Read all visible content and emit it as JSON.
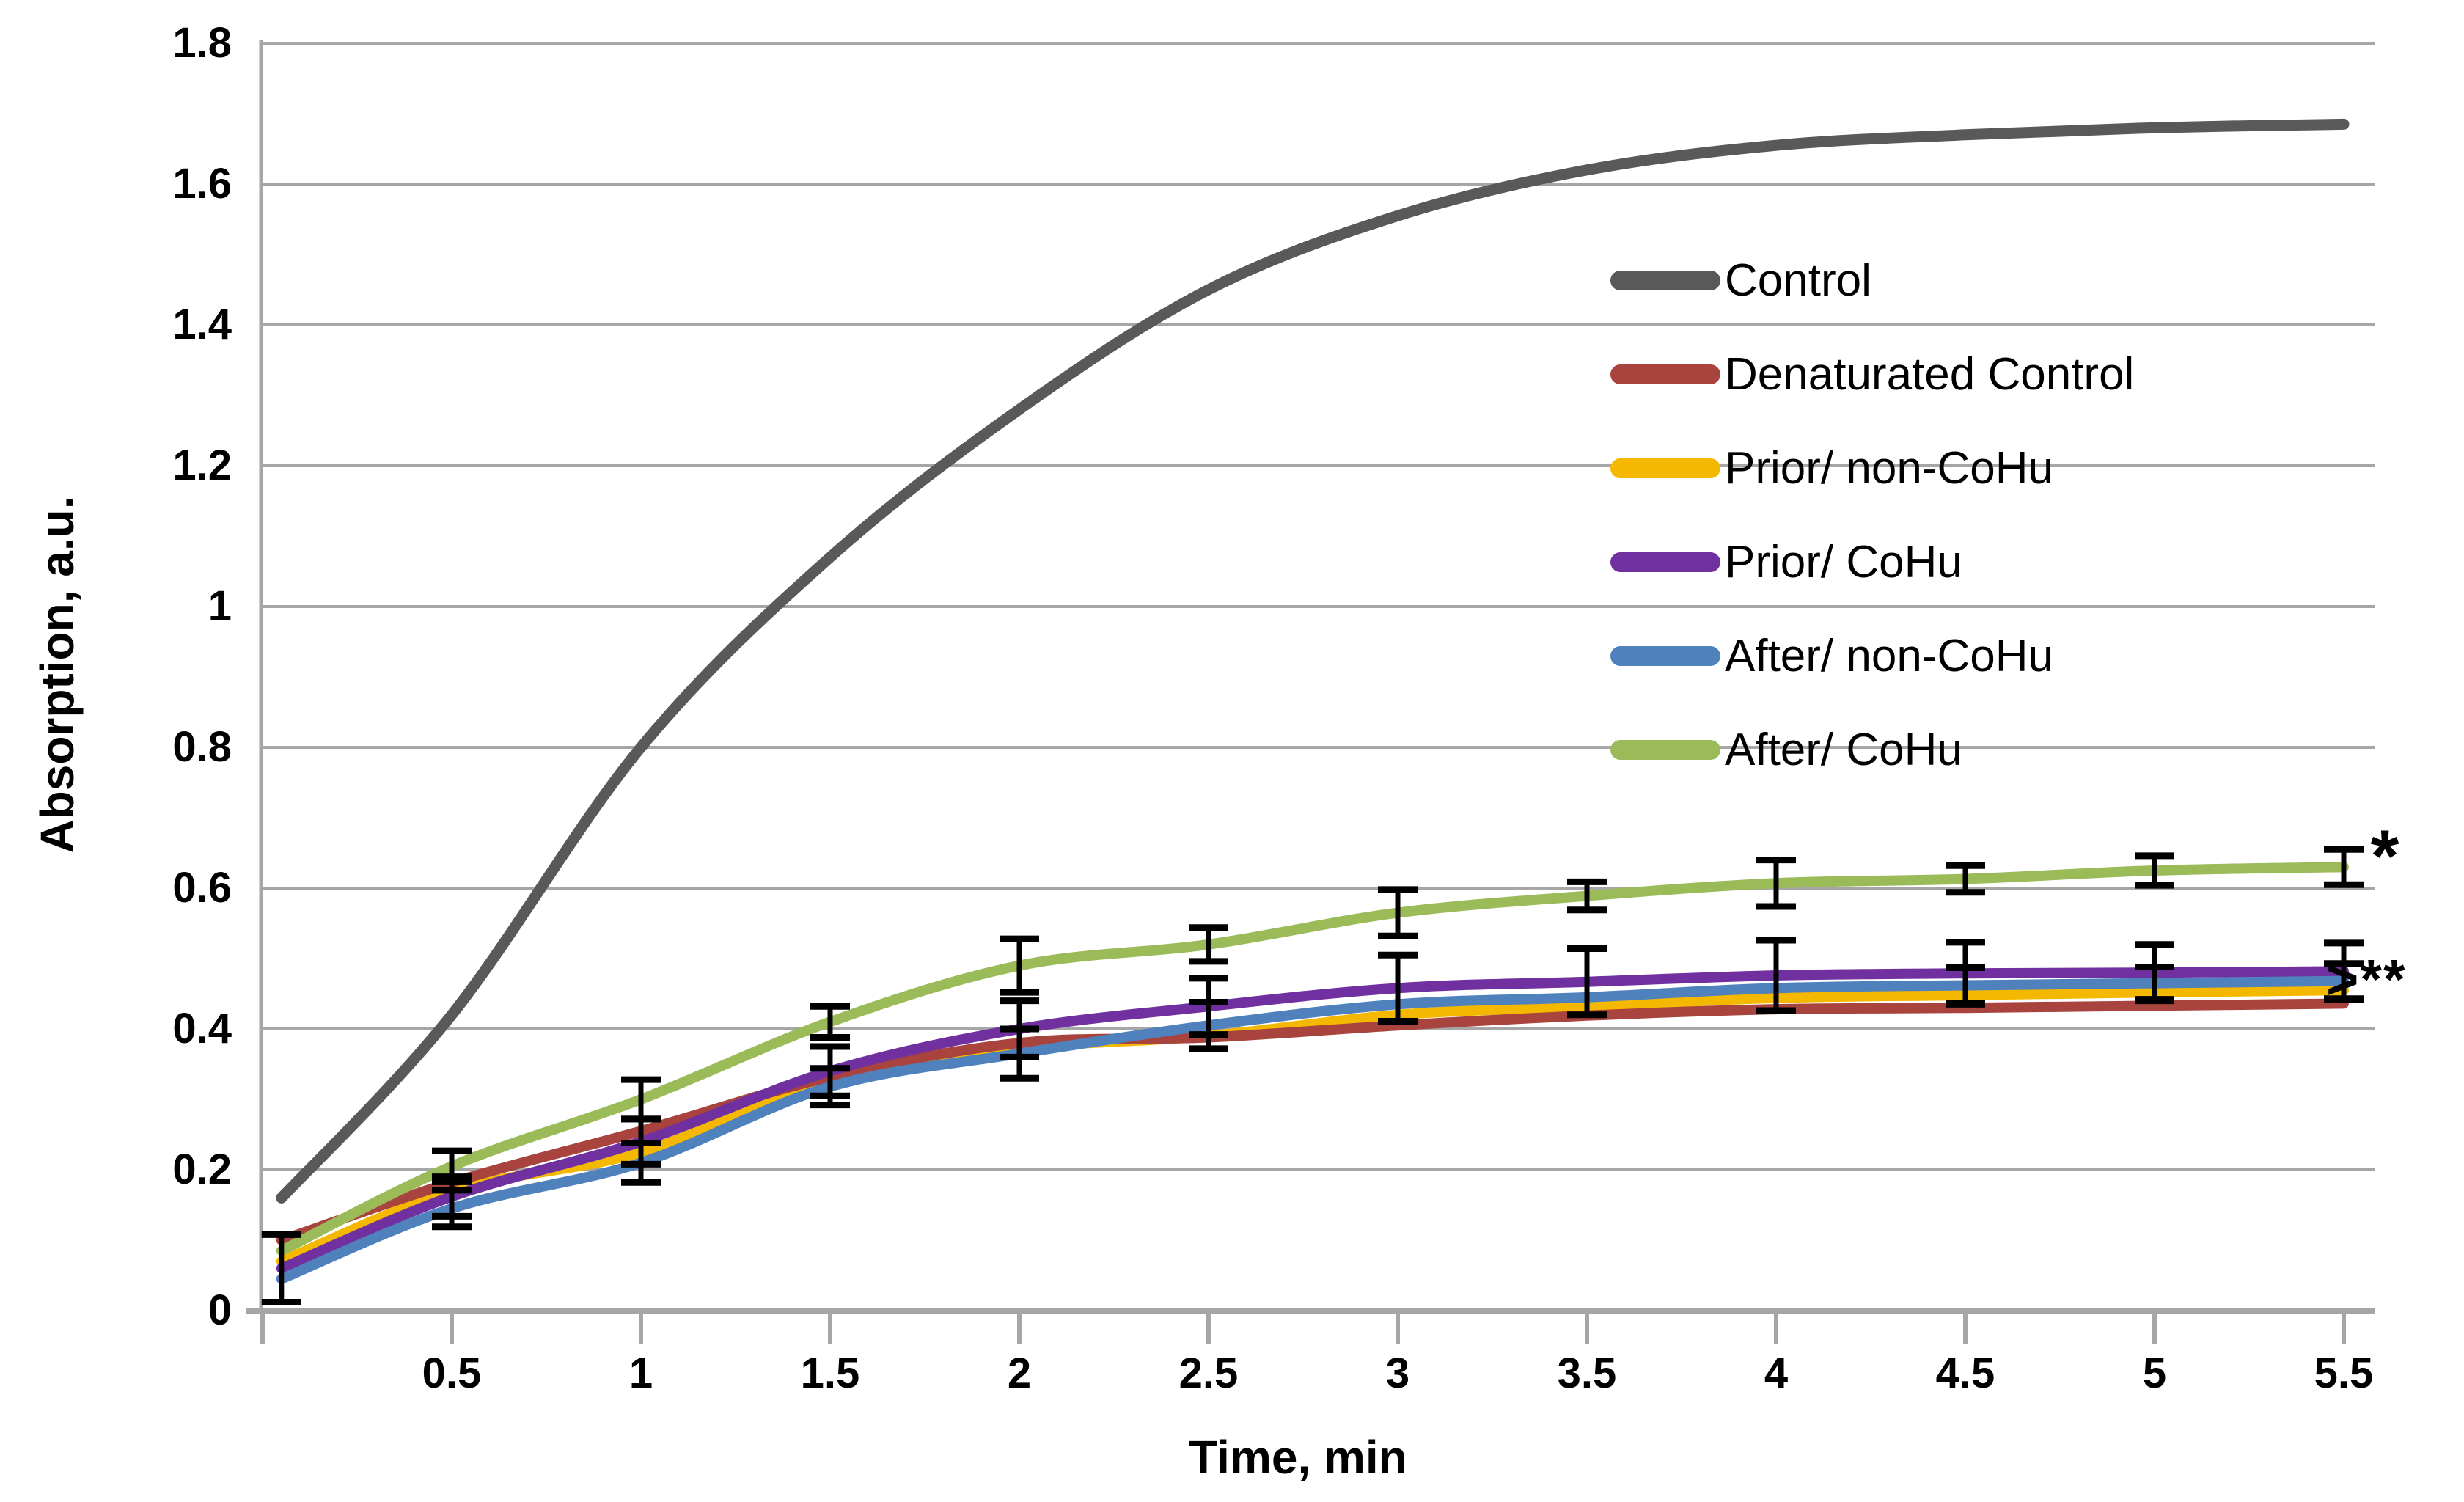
{
  "chart_data": {
    "type": "line",
    "title": "",
    "xlabel": "Time, min",
    "ylabel": "Absorption, a.u.",
    "xlim": [
      0,
      5.58
    ],
    "ylim": [
      0,
      1.8
    ],
    "grid": "horizontal",
    "legend_position": "inside-upper-right",
    "x": [
      0.05,
      0.5,
      1,
      1.5,
      2,
      2.5,
      3,
      3.5,
      4,
      4.5,
      5,
      5.5
    ],
    "series": [
      {
        "name": "Control",
        "color": "#595959",
        "values": [
          0.16,
          0.42,
          0.8,
          1.07,
          1.28,
          1.45,
          1.555,
          1.62,
          1.655,
          1.67,
          1.68,
          1.685
        ],
        "errors": null
      },
      {
        "name": "Denaturated Control",
        "color": "#A8433D",
        "values": [
          0.1,
          0.182,
          0.255,
          0.332,
          0.38,
          0.388,
          0.405,
          0.419,
          0.428,
          0.43,
          0.433,
          0.436
        ],
        "errors": null
      },
      {
        "name": "Prior/ non-CoHu",
        "color": "#F5B800",
        "values": [
          0.07,
          0.17,
          0.225,
          0.328,
          0.372,
          0.39,
          0.42,
          0.432,
          0.444,
          0.448,
          0.452,
          0.455
        ],
        "errors": null
      },
      {
        "name": "Prior/ CoHu",
        "color": "#7030A0",
        "values": [
          0.06,
          0.162,
          0.24,
          0.34,
          0.4,
          0.432,
          0.458,
          0.467,
          0.476,
          0.479,
          0.48,
          0.482
        ],
        "errors": [
          0.048,
          0.028,
          0.032,
          0.035,
          0.04,
          0.04,
          0.047,
          0.047,
          0.05,
          0.044,
          0.04,
          0.04
        ]
      },
      {
        "name": "After/ non-CoHu",
        "color": "#4F81BD",
        "values": [
          0.045,
          0.145,
          0.21,
          0.318,
          0.365,
          0.405,
          0.435,
          0.445,
          0.458,
          0.462,
          0.465,
          0.468
        ],
        "errors": [
          0,
          0.026,
          0.028,
          0.026,
          0.035,
          0.033,
          0,
          0,
          0,
          0.025,
          0.023,
          0.025
        ]
      },
      {
        "name": "After/ CoHu",
        "color": "#9BBB59",
        "values": [
          0.085,
          0.205,
          0.3,
          0.41,
          0.49,
          0.52,
          0.565,
          0.589,
          0.607,
          0.613,
          0.625,
          0.63
        ],
        "errors": [
          0,
          0.022,
          0.028,
          0.022,
          0.038,
          0.024,
          0.033,
          0.02,
          0.033,
          0.019,
          0.021,
          0.025
        ]
      }
    ],
    "y_axis": {
      "title": "Absorption, a.u.",
      "ticks": [
        {
          "label": "0",
          "value": 0
        },
        {
          "label": "0.2",
          "value": 0.2
        },
        {
          "label": "0.4",
          "value": 0.4
        },
        {
          "label": "0.6",
          "value": 0.6
        },
        {
          "label": "0.8",
          "value": 0.8
        },
        {
          "label": "1",
          "value": 1
        },
        {
          "label": "1.2",
          "value": 1.2
        },
        {
          "label": "1.4",
          "value": 1.4
        },
        {
          "label": "1.6",
          "value": 1.6
        },
        {
          "label": "1.8",
          "value": 1.8
        }
      ]
    },
    "x_axis": {
      "title": "Time, min",
      "ticks": [
        {
          "label": "0.5",
          "value": 0.5
        },
        {
          "label": "1",
          "value": 1
        },
        {
          "label": "1.5",
          "value": 1.5
        },
        {
          "label": "2",
          "value": 2
        },
        {
          "label": "2.5",
          "value": 2.5
        },
        {
          "label": "3",
          "value": 3
        },
        {
          "label": "3.5",
          "value": 3.5
        },
        {
          "label": "4",
          "value": 4
        },
        {
          "label": "4.5",
          "value": 4.5
        },
        {
          "label": "5",
          "value": 5
        },
        {
          "label": "5.5",
          "value": 5.5
        }
      ]
    },
    "annotations": {
      "star": "*",
      "cluster": ">**"
    },
    "colors": {
      "grid": "#A6A6A6",
      "error_bar": "#000000"
    }
  }
}
